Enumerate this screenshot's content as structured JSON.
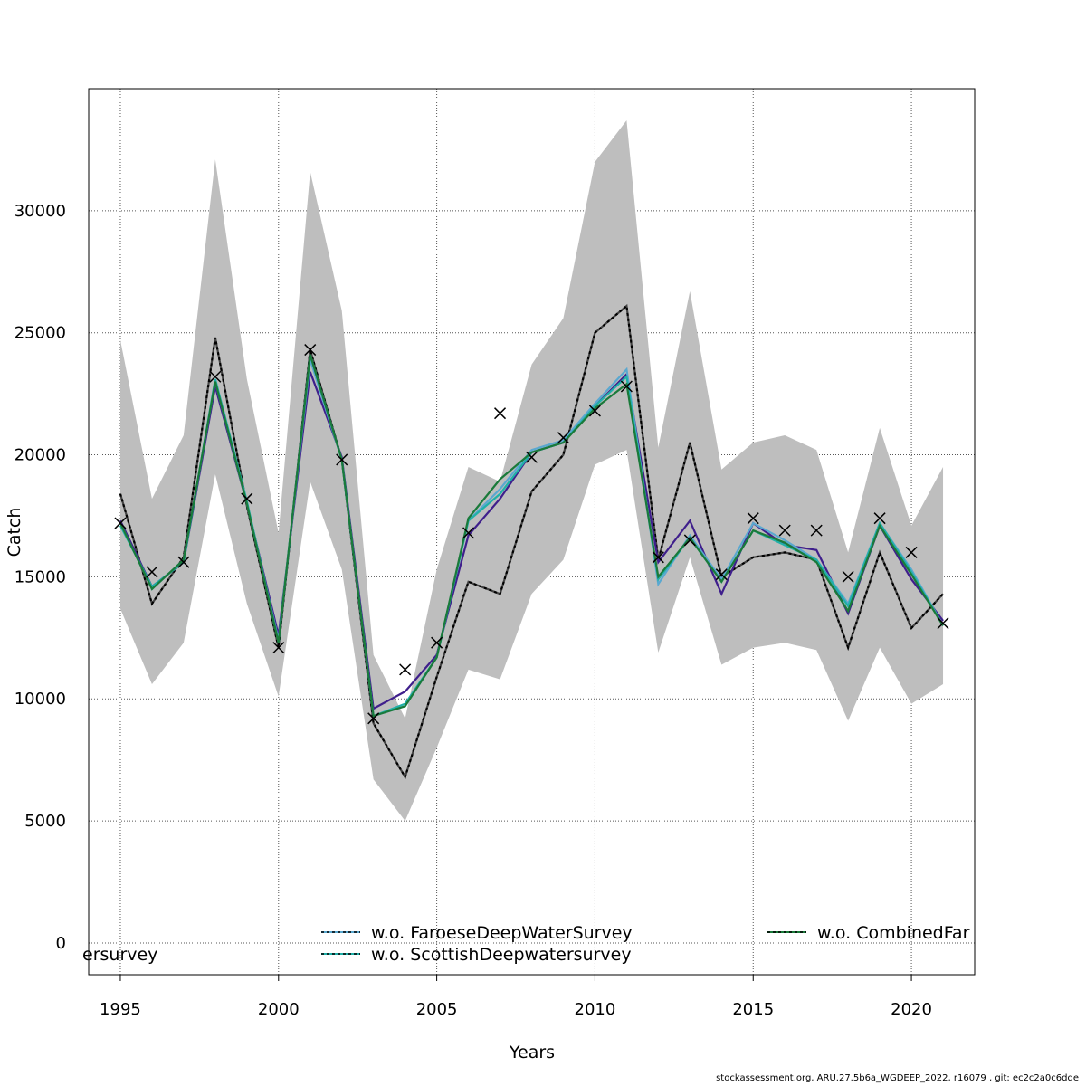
{
  "chart_data": {
    "type": "line",
    "title": "",
    "xlabel": "Years",
    "ylabel": "Catch",
    "xlim": [
      1994,
      2022
    ],
    "ylim": [
      -1300,
      35000
    ],
    "grid": true,
    "x_ticks": [
      "1995",
      "2000",
      "2005",
      "2010",
      "2015",
      "2020"
    ],
    "y_ticks": [
      "0",
      "5000",
      "10000",
      "15000",
      "20000",
      "25000",
      "30000"
    ],
    "x": [
      1995,
      1996,
      1997,
      1998,
      1999,
      2000,
      2001,
      2002,
      2003,
      2004,
      2005,
      2006,
      2007,
      2008,
      2009,
      2010,
      2011,
      2012,
      2013,
      2014,
      2015,
      2016,
      2017,
      2018,
      2019,
      2020,
      2021
    ],
    "confidence_band": {
      "color": "#bebebe",
      "lower": [
        13700,
        10600,
        12300,
        19200,
        13900,
        10100,
        18900,
        15300,
        6700,
        5000,
        8000,
        11200,
        10800,
        14300,
        15700,
        19600,
        20200,
        11900,
        15800,
        11400,
        12100,
        12300,
        12000,
        9100,
        12100,
        9800,
        10600
      ],
      "upper": [
        24700,
        18200,
        20800,
        32100,
        23100,
        16800,
        31600,
        25900,
        11800,
        9200,
        15300,
        19500,
        18900,
        23700,
        25600,
        32000,
        33700,
        20300,
        26700,
        19400,
        20500,
        20800,
        20200,
        16000,
        21100,
        17100,
        19500
      ]
    },
    "observed_marker": "x",
    "observed": [
      17200,
      15200,
      15600,
      23200,
      18200,
      12100,
      24300,
      19800,
      9200,
      11200,
      12300,
      16800,
      21700,
      19900,
      20700,
      21800,
      22800,
      15800,
      16500,
      15100,
      17400,
      16900,
      16900,
      15000,
      17400,
      16000,
      13100
    ],
    "series": [
      {
        "color": "#000000",
        "style": "dashed",
        "values": [
          18400,
          13900,
          15800,
          24800,
          17900,
          12100,
          24300,
          19800,
          9000,
          6800,
          10900,
          14800,
          14300,
          18500,
          20000,
          25000,
          26100,
          15700,
          20500,
          15000,
          15800,
          16000,
          15700,
          12100,
          16000,
          12900,
          14300
        ]
      },
      {
        "color": "#3f1f8c",
        "style": "solid",
        "values": [
          17300,
          14600,
          15600,
          22800,
          18000,
          12600,
          23400,
          19900,
          9600,
          10300,
          11800,
          16700,
          18200,
          20100,
          20500,
          22000,
          23300,
          15600,
          17300,
          14300,
          17200,
          16300,
          16100,
          13500,
          17100,
          14900,
          13200
        ]
      },
      {
        "color": "#5aa8d0",
        "style": "solid",
        "values": [
          17200,
          14500,
          15700,
          23000,
          18000,
          12400,
          23900,
          19800,
          9300,
          9700,
          11700,
          17300,
          18600,
          20200,
          20600,
          22100,
          23500,
          14700,
          16700,
          14900,
          17200,
          16500,
          15700,
          13900,
          17200,
          15300,
          13000
        ]
      },
      {
        "color": "#20b0a8",
        "style": "solid",
        "values": [
          17100,
          14600,
          15600,
          23100,
          18100,
          12300,
          24100,
          19800,
          9300,
          9800,
          11700,
          17300,
          18400,
          20100,
          20500,
          22000,
          23200,
          14900,
          16600,
          14800,
          16900,
          16300,
          15700,
          13800,
          17200,
          15200,
          13000
        ]
      },
      {
        "color": "#1a7a3a",
        "style": "solid",
        "values": [
          17200,
          14500,
          15700,
          23000,
          18000,
          12300,
          24100,
          19800,
          9300,
          9700,
          11700,
          17400,
          19000,
          20100,
          20500,
          21900,
          22900,
          15000,
          16600,
          14800,
          16900,
          16400,
          15600,
          13600,
          17100,
          15100,
          13000
        ]
      }
    ],
    "legend": {
      "placement": "bottom",
      "entries": [
        {
          "label": "w.o. FaroeseDeepWaterSurvey",
          "color": "#5aa8d0"
        },
        {
          "label": "w.o. ScottishDeepwatersurvey",
          "color": "#20b0a8"
        },
        {
          "label": "w.o. CombinedFar",
          "color": "#1a7a3a"
        },
        {
          "label": "ersurvey",
          "color": ""
        }
      ]
    }
  },
  "footer": "stockassessment.org, ARU.27.5b6a_WGDEEP_2022, r16079 , git: ec2c2a0c6dde"
}
